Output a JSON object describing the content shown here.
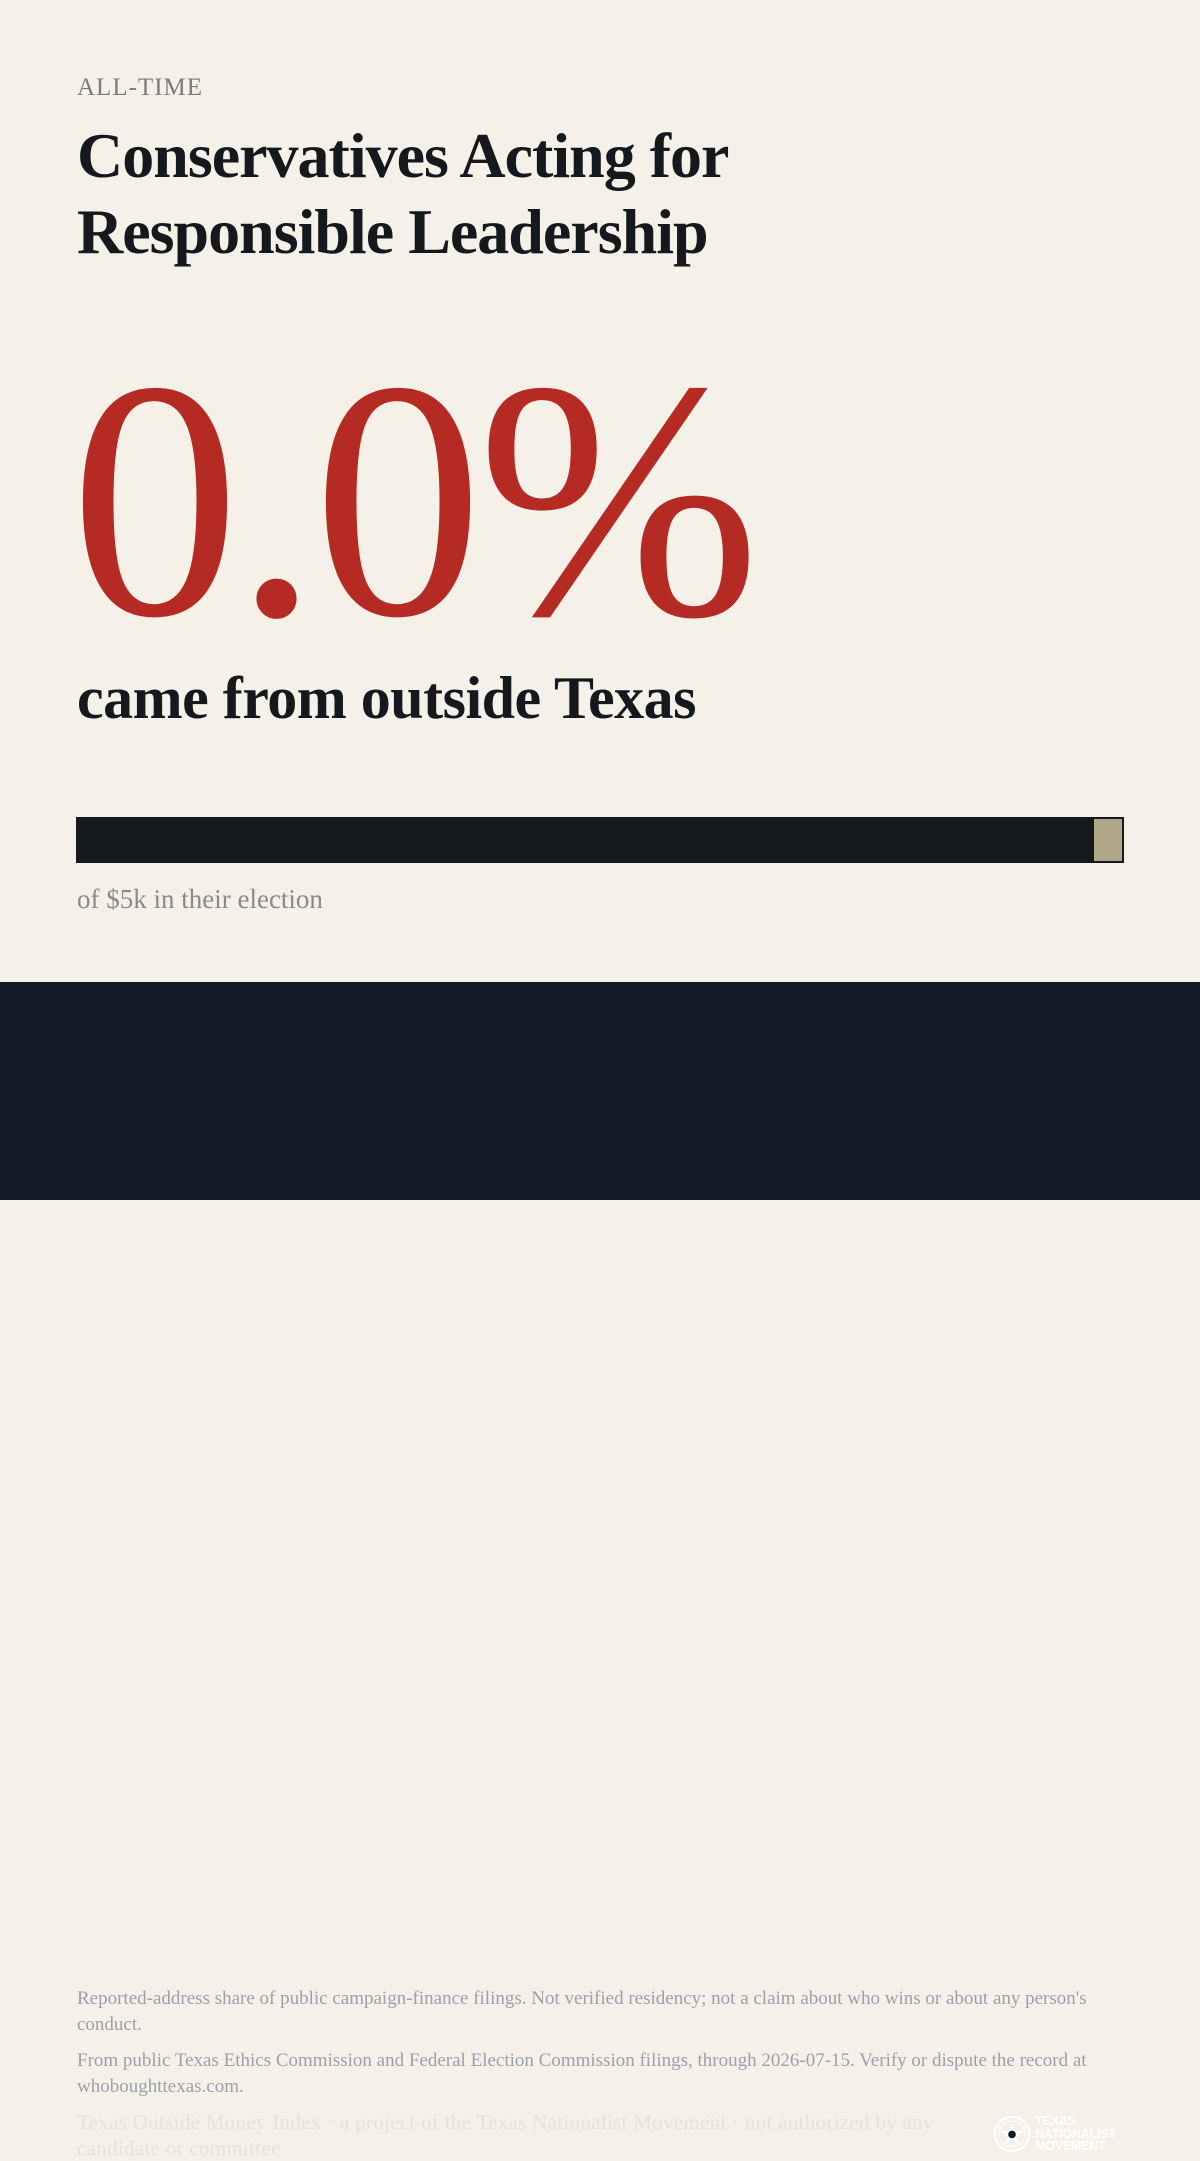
{
  "kicker": "ALL-TIME",
  "title": "Conservatives Acting for Responsible Leadership",
  "headline": {
    "value": "0.0%",
    "subtitle": "came from outside Texas"
  },
  "bar": {
    "outside_share": 0.0,
    "caption": "of $5k in their election",
    "colors": {
      "inside": "#15181d",
      "outside": "#b2a789",
      "accent": "#b52a22"
    }
  },
  "footer": {
    "disclaimer": "Reported-address share of public campaign-finance filings. Not verified residency; not a claim about who wins or about any person's conduct.",
    "source": "From public Texas Ethics Commission and Federal Election Commission filings, through 2026-07-15. Verify or dispute the record at whoboughttexas.com.",
    "credit": "Texas Outside Money Index · a project of the Texas Nationalist Movement · not authorized by any candidate or committee",
    "logo": {
      "icon": "star-seal-icon",
      "line1": "TEXAS",
      "line2": "NATIONALIST",
      "line3": "MOVEMENT"
    }
  }
}
